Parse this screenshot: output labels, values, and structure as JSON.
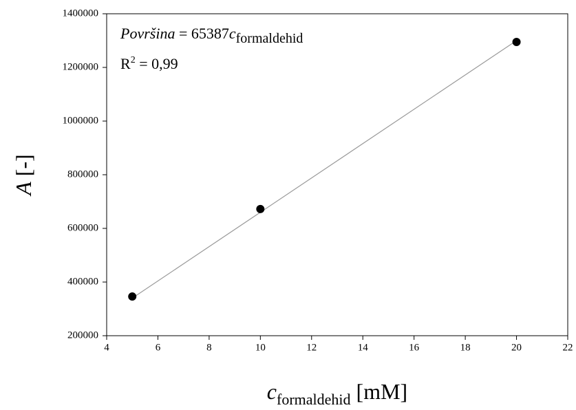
{
  "chart_data": {
    "type": "scatter",
    "x_label": {
      "symbol": "c",
      "subscript": "formaldehid",
      "unit": "[mM]"
    },
    "y_label": {
      "symbol": "A",
      "unit": "[-]"
    },
    "annotations": {
      "equation": {
        "italic": "Površina",
        "text": "= 65387",
        "symbol": "c",
        "subscript": "formaldehid"
      },
      "r2": {
        "symbol": "R",
        "superscript": "2",
        "text": "= 0,99"
      }
    },
    "series": [
      {
        "color": "#000000",
        "x": [
          5,
          10,
          20
        ],
        "values": [
          346000,
          672000,
          1295000
        ]
      }
    ],
    "fit_line": {
      "color": "#999999",
      "x": [
        5,
        20
      ],
      "values": [
        340000,
        1300000
      ]
    },
    "xlim": [
      4,
      22
    ],
    "xticks": [
      4,
      6,
      8,
      10,
      12,
      14,
      16,
      18,
      20,
      22
    ],
    "ylim": [
      200000,
      1400000
    ],
    "yticks": [
      200000,
      400000,
      600000,
      800000,
      1000000,
      1200000,
      1400000
    ]
  }
}
